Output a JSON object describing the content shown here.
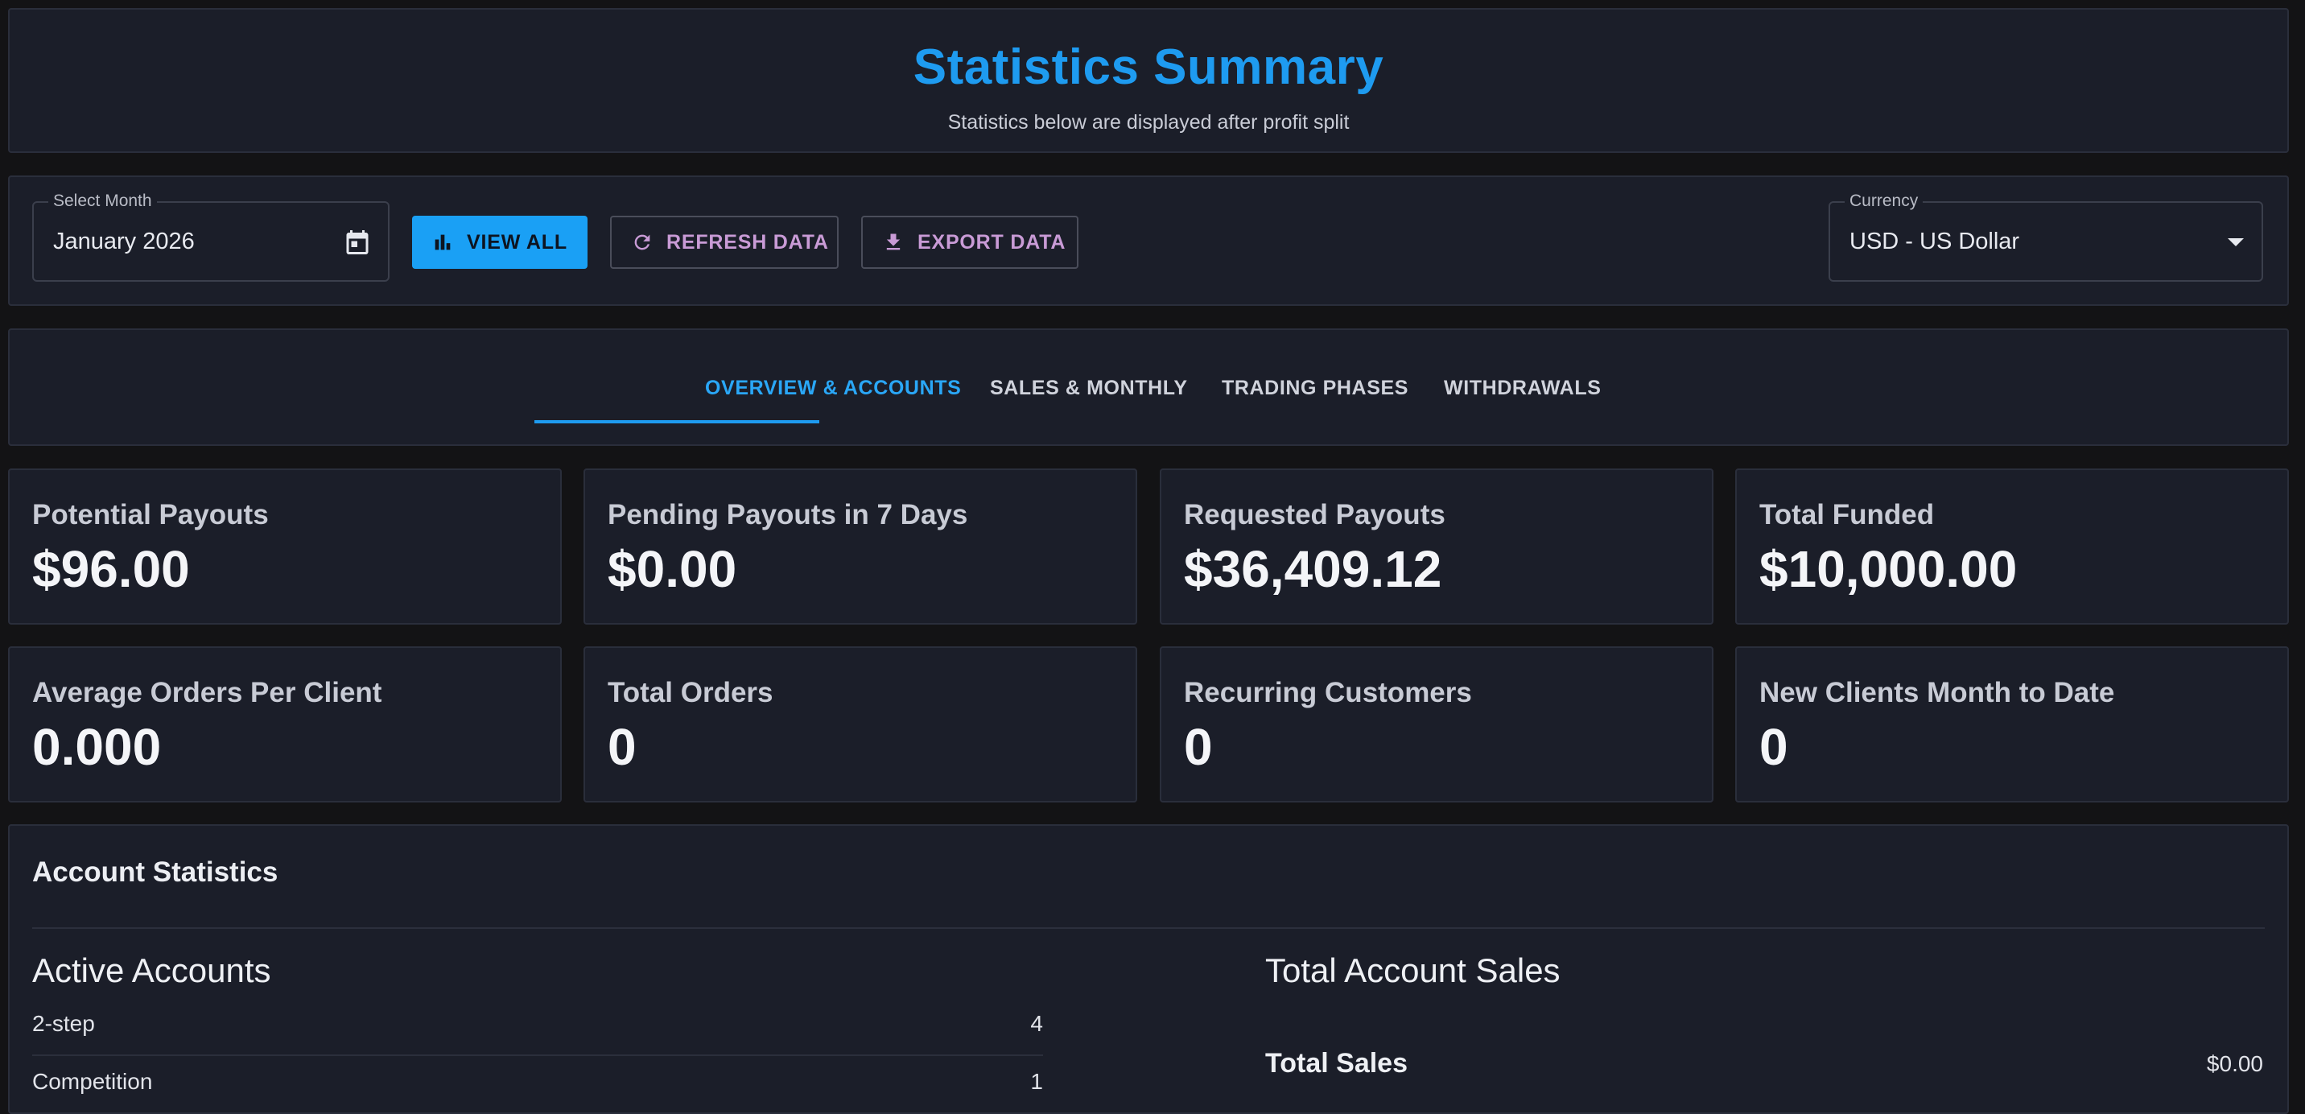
{
  "header": {
    "title": "Statistics Summary",
    "subtitle": "Statistics below are displayed after profit split"
  },
  "controls": {
    "month_label": "Select Month",
    "month_value": "January 2026",
    "view_all_label": "VIEW ALL",
    "refresh_label": "REFRESH DATA",
    "export_label": "EXPORT DATA",
    "currency_label": "Currency",
    "currency_value": "USD - US Dollar"
  },
  "tabs": [
    {
      "label": "OVERVIEW & ACCOUNTS",
      "active": true
    },
    {
      "label": "SALES & MONTHLY",
      "active": false
    },
    {
      "label": "TRADING PHASES",
      "active": false
    },
    {
      "label": "WITHDRAWALS",
      "active": false
    }
  ],
  "stats": [
    {
      "label": "Potential Payouts",
      "value": "$96.00"
    },
    {
      "label": "Pending Payouts in 7 Days",
      "value": "$0.00"
    },
    {
      "label": "Requested Payouts",
      "value": "$36,409.12"
    },
    {
      "label": "Total Funded",
      "value": "$10,000.00"
    },
    {
      "label": "Average Orders Per Client",
      "value": "0.000"
    },
    {
      "label": "Total Orders",
      "value": "0"
    },
    {
      "label": "Recurring Customers",
      "value": "0"
    },
    {
      "label": "New Clients Month to Date",
      "value": "0"
    }
  ],
  "account_statistics": {
    "heading": "Account Statistics",
    "active_accounts": {
      "title": "Active Accounts",
      "rows": [
        {
          "label": "2-step",
          "value": "4"
        },
        {
          "label": "Competition",
          "value": "1"
        }
      ]
    },
    "total_account_sales": {
      "title": "Total Account Sales",
      "total_label": "Total Sales",
      "total_value": "$0.00"
    }
  },
  "colors": {
    "accent": "#1e9bf0",
    "secondary_button_text": "#c99bd6",
    "panel_bg": "#1b1e29",
    "page_bg": "#131315"
  },
  "icons": [
    "calendar-icon",
    "bar-chart-icon",
    "refresh-icon",
    "download-icon",
    "dropdown-caret-icon"
  ]
}
